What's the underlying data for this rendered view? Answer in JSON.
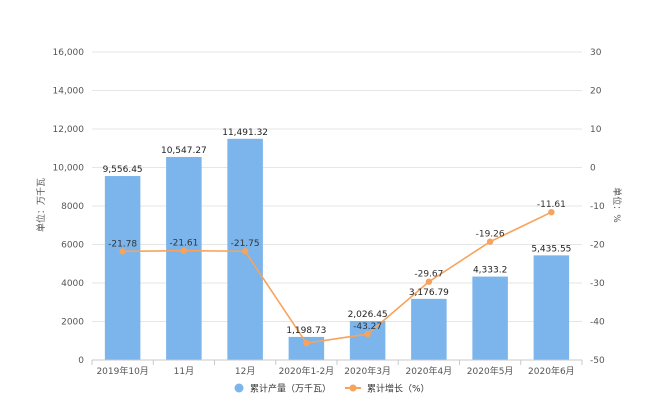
{
  "chart_data": {
    "type": "bar",
    "categories": [
      "2019年10月",
      "11月",
      "12月",
      "2020年1-2月",
      "2020年3月",
      "2020年4月",
      "2020年5月",
      "2020年6月"
    ],
    "series": [
      {
        "name": "累计产量（万千瓦）",
        "type": "bar",
        "axis": "left",
        "color": "#7cb5ec",
        "values": [
          9556.45,
          10547.27,
          11491.32,
          1198.73,
          2026.45,
          3176.79,
          4333.2,
          5435.55
        ],
        "labels": [
          "9,556.45",
          "10,547.27",
          "11,491.32",
          "1,198.73",
          "2,026.45",
          "3,176.79",
          "4,333.2",
          "5,435.55"
        ]
      },
      {
        "name": "累计增长（%）",
        "type": "line",
        "axis": "right",
        "color": "#f7a35c",
        "values": [
          -21.78,
          -21.61,
          -21.75,
          -45.62,
          -43.27,
          -29.67,
          -19.26,
          -11.61
        ],
        "labels": [
          "-21.78",
          "-21.61",
          "-21.75",
          "",
          "-43.27",
          "-29.67",
          "-19.26",
          "-11.61"
        ]
      }
    ],
    "y_left": {
      "label": "单位：万千瓦",
      "range": [
        0,
        16000
      ],
      "ticks": [
        0,
        2000,
        4000,
        6000,
        8000,
        10000,
        12000,
        14000,
        16000
      ],
      "tick_labels": [
        "0",
        "2000",
        "4000",
        "6000",
        "8000",
        "10,000",
        "12,000",
        "14,000",
        "16,000"
      ]
    },
    "y_right": {
      "label": "单位：%",
      "range": [
        -50,
        30
      ],
      "ticks": [
        -50,
        -40,
        -30,
        -20,
        -10,
        0,
        10,
        20,
        30
      ],
      "tick_labels": [
        "-50",
        "-40",
        "-30",
        "-20",
        "-10",
        "0",
        "10",
        "20",
        "30"
      ]
    },
    "grid": true,
    "legend": "bottom-center"
  }
}
